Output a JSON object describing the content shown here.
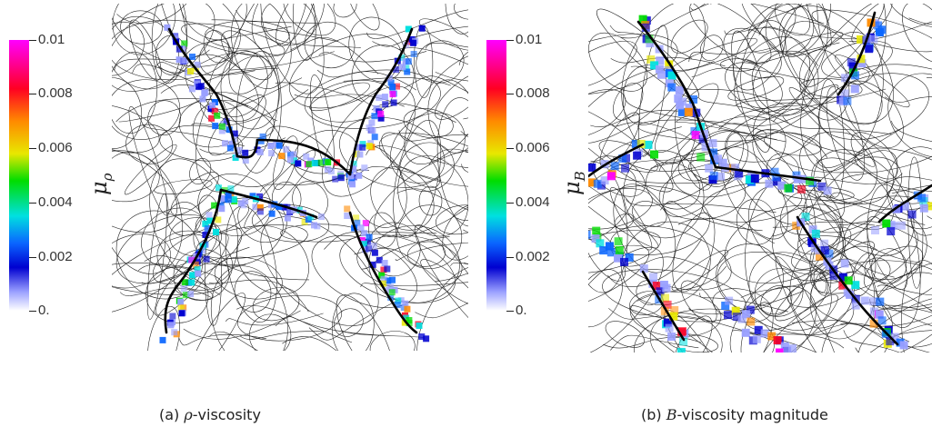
{
  "panels": [
    {
      "caption_prefix": "(a) ",
      "caption_symbol": "ρ",
      "caption_suffix": "-viscosity",
      "colorbar": {
        "title": "μ",
        "title_sub": "ρ",
        "ticks": [
          "0.01",
          "0.008",
          "0.006",
          "0.004",
          "0.002",
          "0."
        ]
      }
    },
    {
      "caption_prefix": "(b) ",
      "caption_symbol": "B",
      "caption_suffix": "-viscosity magnitude",
      "colorbar": {
        "title": "μ",
        "title_sub": "B",
        "ticks": [
          "0.01",
          "0.008",
          "0.006",
          "0.004",
          "0.002",
          "0."
        ]
      }
    }
  ],
  "colors": {
    "colormap": [
      "#ffffff",
      "#9aa0ff",
      "#0000d0",
      "#0a66ff",
      "#00e0e0",
      "#00dd00",
      "#e8e800",
      "#ff8a00",
      "#ff0022",
      "#ff00ff"
    ],
    "contour": "#000000"
  }
}
